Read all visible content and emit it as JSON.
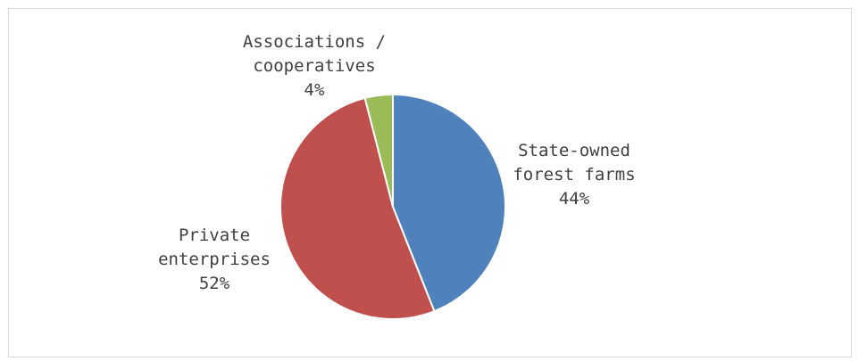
{
  "chart_data": {
    "type": "pie",
    "title": "",
    "slices": [
      {
        "name": "State-owned forest farms",
        "label_lines": [
          "State-owned",
          "forest farms"
        ],
        "value": 44,
        "value_label": "44%",
        "color": "#4f81bd"
      },
      {
        "name": "Private enterprises",
        "label_lines": [
          "Private",
          "enterprises"
        ],
        "value": 52,
        "value_label": "52%",
        "color": "#c0504d"
      },
      {
        "name": "Associations / cooperatives",
        "label_lines": [
          "Associations /",
          "cooperatives"
        ],
        "value": 4,
        "value_label": "4%",
        "color": "#9bbb59"
      }
    ],
    "start_angle_deg": 0,
    "direction": "clockwise",
    "legend": "none",
    "data_labels": "category name and percentage, outside end"
  }
}
